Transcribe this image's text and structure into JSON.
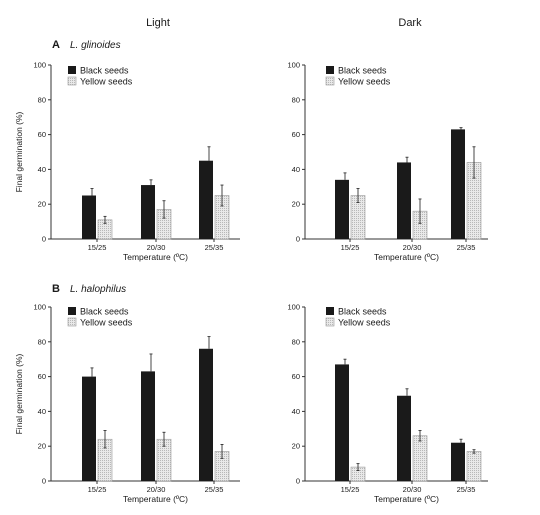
{
  "headers": {
    "left": "Light",
    "right": "Dark"
  },
  "rows": [
    {
      "letter": "A",
      "species": "L. glinoides"
    },
    {
      "letter": "B",
      "species": "L. halophilus"
    }
  ],
  "colors": {
    "black": "#1a1a1a",
    "yellow": "#e9e9e9",
    "axis": "#333333"
  },
  "chart_data": [
    {
      "type": "bar",
      "panel": "A-Light",
      "categories": [
        "15/25",
        "20/30",
        "25/35"
      ],
      "series": [
        {
          "name": "Black seeds",
          "values": [
            25,
            31,
            45
          ],
          "errors": [
            4,
            3,
            8
          ]
        },
        {
          "name": "Yellow seeds",
          "values": [
            11,
            17,
            25
          ],
          "errors": [
            2,
            5,
            6
          ]
        }
      ],
      "xlabel": "Temperature (ºC)",
      "ylabel": "Final germination (%)",
      "ylim": [
        0,
        100
      ],
      "yticks": [
        0,
        20,
        40,
        60,
        80,
        100
      ],
      "legend": "top-left",
      "grid": false
    },
    {
      "type": "bar",
      "panel": "A-Dark",
      "categories": [
        "15/25",
        "20/30",
        "25/35"
      ],
      "series": [
        {
          "name": "Black seeds",
          "values": [
            34,
            44,
            63
          ],
          "errors": [
            4,
            3,
            1
          ]
        },
        {
          "name": "Yellow seeds",
          "values": [
            25,
            16,
            44
          ],
          "errors": [
            4,
            7,
            9
          ]
        }
      ],
      "xlabel": "Temperature (ºC)",
      "ylabel": "",
      "ylim": [
        0,
        100
      ],
      "yticks": [
        0,
        20,
        40,
        60,
        80,
        100
      ],
      "legend": "top-left",
      "grid": false
    },
    {
      "type": "bar",
      "panel": "B-Light",
      "categories": [
        "15/25",
        "20/30",
        "25/35"
      ],
      "series": [
        {
          "name": "Black seeds",
          "values": [
            60,
            63,
            76
          ],
          "errors": [
            5,
            10,
            7
          ]
        },
        {
          "name": "Yellow seeds",
          "values": [
            24,
            24,
            17
          ],
          "errors": [
            5,
            4,
            4
          ]
        }
      ],
      "xlabel": "Temperature (ºC)",
      "ylabel": "Final germination (%)",
      "ylim": [
        0,
        100
      ],
      "yticks": [
        0,
        20,
        40,
        60,
        80,
        100
      ],
      "legend": "top-left",
      "grid": false
    },
    {
      "type": "bar",
      "panel": "B-Dark",
      "categories": [
        "15/25",
        "20/30",
        "25/35"
      ],
      "series": [
        {
          "name": "Black seeds",
          "values": [
            67,
            49,
            22
          ],
          "errors": [
            3,
            4,
            2
          ]
        },
        {
          "name": "Yellow seeds",
          "values": [
            8,
            26,
            17
          ],
          "errors": [
            2,
            3,
            1
          ]
        }
      ],
      "xlabel": "Temperature (ºC)",
      "ylabel": "",
      "ylim": [
        0,
        100
      ],
      "yticks": [
        0,
        20,
        40,
        60,
        80,
        100
      ],
      "legend": "top-left",
      "grid": false
    }
  ]
}
